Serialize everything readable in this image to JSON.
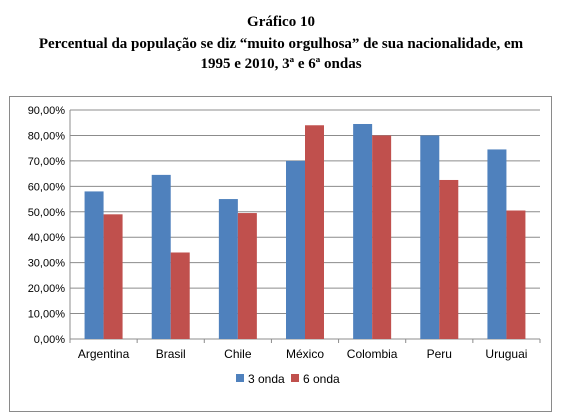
{
  "figure": {
    "label": "Gráfico 10",
    "title_line1": "Percentual da população se diz “muito orgulhosa” de sua nacionalidade, em",
    "title_line2": "1995 e 2010, 3ª e 6ª ondas"
  },
  "chart_data": {
    "type": "bar",
    "categories": [
      "Argentina",
      "Brasil",
      "Chile",
      "México",
      "Colombia",
      "Peru",
      "Uruguai"
    ],
    "series": [
      {
        "name": "3 onda",
        "color": "#4f81bd",
        "values": [
          58.0,
          64.5,
          55.0,
          70.0,
          84.5,
          80.0,
          74.5
        ]
      },
      {
        "name": "6 onda",
        "color": "#c0504d",
        "values": [
          49.0,
          34.0,
          49.5,
          84.0,
          80.0,
          62.5,
          50.5
        ]
      }
    ],
    "ylim": [
      0,
      90
    ],
    "ytick_labels": [
      "0,00%",
      "10,00%",
      "20,00%",
      "30,00%",
      "40,00%",
      "50,00%",
      "60,00%",
      "70,00%",
      "80,00%",
      "90,00%"
    ],
    "grid": true,
    "legend_position": "bottom"
  }
}
